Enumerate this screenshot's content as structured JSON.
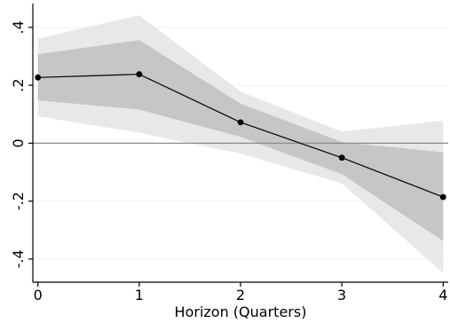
{
  "chart_data": {
    "type": "line",
    "title": "",
    "xlabel": "Horizon (Quarters)",
    "ylabel": "",
    "x": [
      0,
      1,
      2,
      3,
      4
    ],
    "xticks": [
      "0",
      "1",
      "2",
      "3",
      "4"
    ],
    "yticks": [
      {
        "value": -0.4,
        "label": "-.4"
      },
      {
        "value": -0.2,
        "label": "-.2"
      },
      {
        "value": 0,
        "label": "0"
      },
      {
        "value": 0.2,
        "label": ".2"
      },
      {
        "value": 0.4,
        "label": ".4"
      }
    ],
    "xlim": [
      -0.05,
      4.05
    ],
    "ylim": [
      -0.48,
      0.47
    ],
    "grid": true,
    "reference_line": 0,
    "series": [
      {
        "values": [
          0.227,
          0.238,
          0.072,
          -0.05,
          -0.186
        ]
      }
    ],
    "bands": [
      {
        "lower": [
          0.093,
          0.036,
          -0.036,
          -0.139,
          -0.448
        ],
        "upper": [
          0.361,
          0.442,
          0.178,
          0.04,
          0.078
        ]
      },
      {
        "lower": [
          0.148,
          0.116,
          0.022,
          -0.107,
          -0.338
        ],
        "upper": [
          0.307,
          0.356,
          0.137,
          0.004,
          -0.031
        ]
      }
    ],
    "colors": {
      "outer_band": "#e8e8e8",
      "inner_band": "#c6c6c6",
      "line": "#000000",
      "marker": "#000000",
      "zero_line": "#8c8c8c",
      "grid": "#f0f0f0",
      "axis": "#000000"
    }
  }
}
